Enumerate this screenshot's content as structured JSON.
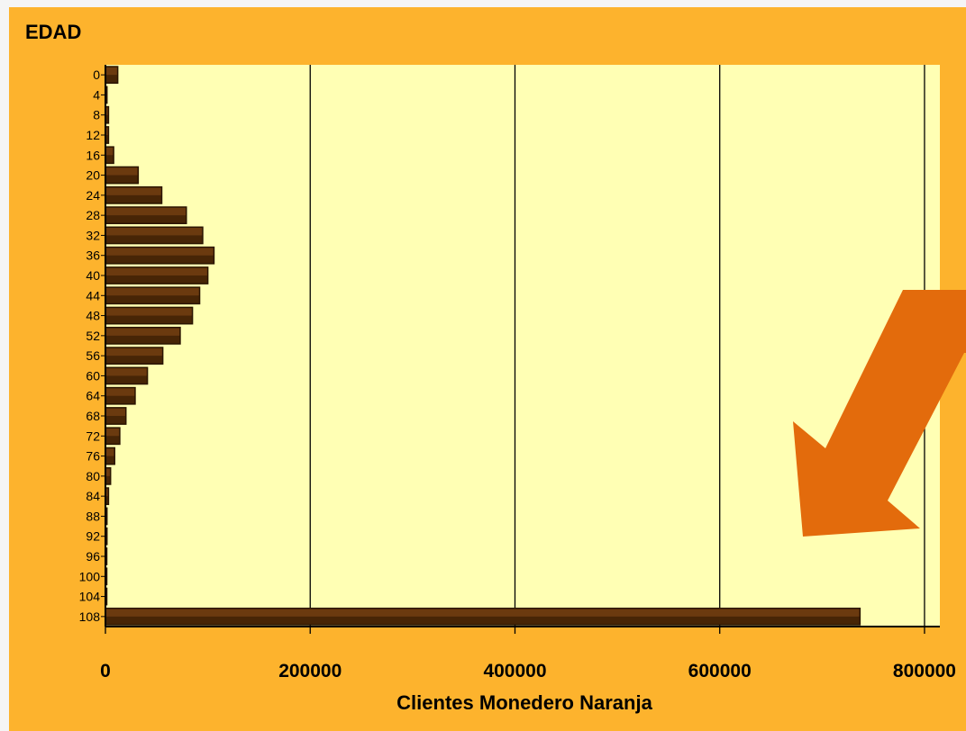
{
  "colors": {
    "frame": "#fdb32d",
    "plot_bg": "#ffffb4",
    "bar_fill": "#6b3a0f",
    "bar_shadow": "#2a1400",
    "grid": "#000000",
    "arrow": "#e36b0c",
    "page_bg": "#f5f5f5"
  },
  "annotation": {
    "icon": "arrow-down-left-icon"
  },
  "chart_data": {
    "type": "bar",
    "orientation": "horizontal",
    "title": "EDAD",
    "xlabel": "Clientes Monedero Naranja",
    "ylabel": "",
    "xlim": [
      0,
      815000
    ],
    "x_ticks": [
      0,
      200000,
      400000,
      600000,
      800000
    ],
    "x_tick_labels": [
      "0",
      "200000",
      "400000",
      "600000",
      "800000"
    ],
    "grid": "vertical",
    "categories": [
      "0",
      "4",
      "8",
      "12",
      "16",
      "20",
      "24",
      "28",
      "32",
      "36",
      "40",
      "44",
      "48",
      "52",
      "56",
      "60",
      "64",
      "68",
      "72",
      "76",
      "80",
      "84",
      "88",
      "92",
      "96",
      "100",
      "104",
      "108"
    ],
    "values": [
      12000,
      1500,
      3000,
      3000,
      8000,
      32000,
      55000,
      79000,
      95000,
      106000,
      100000,
      92000,
      85000,
      73000,
      56000,
      41000,
      29000,
      20000,
      14000,
      9000,
      5000,
      3000,
      1500,
      1500,
      1000,
      1000,
      1000,
      737000
    ]
  }
}
